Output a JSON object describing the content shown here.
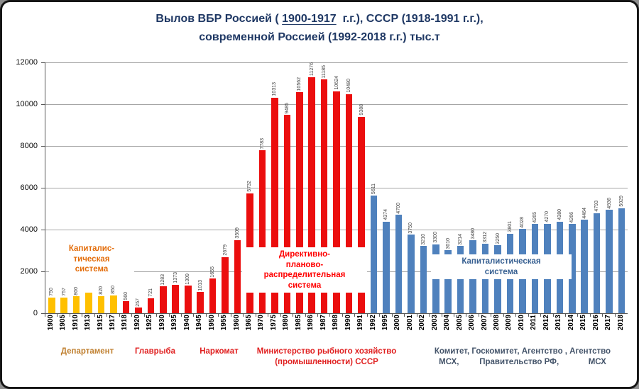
{
  "title": {
    "l1a": "Вылов ВБР Россией ( ",
    "l1b": "1900-1917",
    "l1c": "  г.г.), СССР (1918-1991 г.г.),",
    "line2": "современной Россией (1992-2018 г.г.) тыс.т",
    "color": "#1F3864"
  },
  "chart_data": {
    "type": "bar",
    "title": "Вылов ВБР Россией (1900-1917 г.г.), СССР (1918-1991 г.г.), современной Россией (1992-2018 г.г.) тыс.т",
    "unit": "тыс.т",
    "ylim": [
      0,
      12000
    ],
    "yticks": [
      "0",
      "2000",
      "4000",
      "6000",
      "8000",
      "10000",
      "12000"
    ],
    "grid": true,
    "eras": {
      "empire": {
        "name": "Капиталистическая система (Россия 1900-1917)",
        "color": "#FFC000"
      },
      "soviet": {
        "name": "Директивно-планово-распределительная система (СССР 1918-1991)",
        "color": "#EB0E0E"
      },
      "modern": {
        "name": "Капиталистическая система (Россия 1992-2018)",
        "color": "#4F81BD"
      }
    },
    "bars": [
      {
        "year": "1900",
        "value": 750,
        "label": "750",
        "era": "empire"
      },
      {
        "year": "1905",
        "value": 757,
        "label": "757",
        "era": "empire"
      },
      {
        "year": "1910",
        "value": 800,
        "label": "800",
        "era": "empire"
      },
      {
        "year": "1913",
        "value": 1000,
        "label": "",
        "era": "empire"
      },
      {
        "year": "1915",
        "value": 820,
        "label": "820",
        "era": "empire"
      },
      {
        "year": "1917",
        "value": 850,
        "label": "850",
        "era": "empire"
      },
      {
        "year": "1918",
        "value": 560,
        "label": "560",
        "era": "soviet"
      },
      {
        "year": "1920",
        "value": 257,
        "label": "257",
        "era": "soviet"
      },
      {
        "year": "1925",
        "value": 721,
        "label": "721",
        "era": "soviet"
      },
      {
        "year": "1930",
        "value": 1283,
        "label": "1283",
        "era": "soviet"
      },
      {
        "year": "1935",
        "value": 1373,
        "label": "1373",
        "era": "soviet"
      },
      {
        "year": "1940",
        "value": 1309,
        "label": "1309",
        "era": "soviet"
      },
      {
        "year": "1945",
        "value": 1013,
        "label": "1013",
        "era": "soviet"
      },
      {
        "year": "1950",
        "value": 1655,
        "label": "1655",
        "era": "soviet"
      },
      {
        "year": "1955",
        "value": 2679,
        "label": "2679",
        "era": "soviet"
      },
      {
        "year": "1960",
        "value": 3509,
        "label": "3509",
        "era": "soviet"
      },
      {
        "year": "1965",
        "value": 5732,
        "label": "5732",
        "era": "soviet"
      },
      {
        "year": "1970",
        "value": 7783,
        "label": "7783",
        "era": "soviet"
      },
      {
        "year": "1975",
        "value": 10313,
        "label": "10313",
        "era": "soviet"
      },
      {
        "year": "1980",
        "value": 9485,
        "label": "9485",
        "era": "soviet"
      },
      {
        "year": "1985",
        "value": 10562,
        "label": "10562",
        "era": "soviet"
      },
      {
        "year": "1986",
        "value": 11276,
        "label": "11276",
        "era": "soviet"
      },
      {
        "year": "1987",
        "value": 11185,
        "label": "11185",
        "era": "soviet"
      },
      {
        "year": "1988",
        "value": 10624,
        "label": "10624",
        "era": "soviet"
      },
      {
        "year": "1990",
        "value": 10480,
        "label": "10480",
        "era": "soviet"
      },
      {
        "year": "1991",
        "value": 9388,
        "label": "9388",
        "era": "soviet"
      },
      {
        "year": "1992",
        "value": 5611,
        "label": "5611",
        "era": "modern"
      },
      {
        "year": "1995",
        "value": 4374,
        "label": "4374",
        "era": "modern"
      },
      {
        "year": "2000",
        "value": 4700,
        "label": "4700",
        "era": "modern"
      },
      {
        "year": "2001",
        "value": 3750,
        "label": "3750",
        "era": "modern"
      },
      {
        "year": "2002",
        "value": 3210,
        "label": "3210",
        "era": "modern"
      },
      {
        "year": "2003",
        "value": 3300,
        "label": "3300",
        "era": "modern"
      },
      {
        "year": "2004",
        "value": 3010,
        "label": "3010",
        "era": "modern"
      },
      {
        "year": "2005",
        "value": 3214,
        "label": "3214",
        "era": "modern"
      },
      {
        "year": "2006",
        "value": 3480,
        "label": "3480",
        "era": "modern"
      },
      {
        "year": "2007",
        "value": 3312,
        "label": "3312",
        "era": "modern"
      },
      {
        "year": "2008",
        "value": 3250,
        "label": "3250",
        "era": "modern"
      },
      {
        "year": "2009",
        "value": 3801,
        "label": "3801",
        "era": "modern"
      },
      {
        "year": "2010",
        "value": 4028,
        "label": "4028",
        "era": "modern"
      },
      {
        "year": "2011",
        "value": 4265,
        "label": "4265",
        "era": "modern"
      },
      {
        "year": "2012",
        "value": 4270,
        "label": "4270",
        "era": "modern"
      },
      {
        "year": "2013",
        "value": 4380,
        "label": "4380",
        "era": "modern"
      },
      {
        "year": "2014",
        "value": 4266,
        "label": "4266",
        "era": "modern"
      },
      {
        "year": "2015",
        "value": 4464,
        "label": "4464",
        "era": "modern"
      },
      {
        "year": "2016",
        "value": 4793,
        "label": "4793",
        "era": "modern"
      },
      {
        "year": "2017",
        "value": 4936,
        "label": "4936",
        "era": "modern"
      },
      {
        "year": "2018",
        "value": 5029,
        "label": "5029",
        "era": "modern"
      }
    ]
  },
  "annotations": [
    {
      "id": "capitalist-early",
      "lines": [
        "Капиталис-",
        "тическая",
        "система"
      ],
      "color": "#E36C09"
    },
    {
      "id": "directive",
      "lines": [
        "Директивно-",
        "планово-",
        "распределительная",
        "система"
      ],
      "color": "#FF0000"
    },
    {
      "id": "capitalist-modern",
      "lines": [
        "Капиталистическая",
        "система"
      ],
      "color": "#365F91"
    }
  ],
  "footer_labels": [
    {
      "id": "department",
      "lines": [
        "Департамент"
      ],
      "color": "#C08030"
    },
    {
      "id": "glavryba",
      "lines": [
        "Главрыба"
      ],
      "color": "#E02020"
    },
    {
      "id": "narkomat",
      "lines": [
        "Наркомат"
      ],
      "color": "#E02020"
    },
    {
      "id": "ministry",
      "lines": [
        "Министерство рыбного хозяйство",
        "(промышленности) СССР"
      ],
      "color": "#E02020"
    },
    {
      "id": "komitet",
      "lines": [
        "Комитет, Госкомитет, Агентство , Агентство",
        "МСХ,         Правительство РФ,             МСХ"
      ],
      "color": "#44546A"
    }
  ]
}
